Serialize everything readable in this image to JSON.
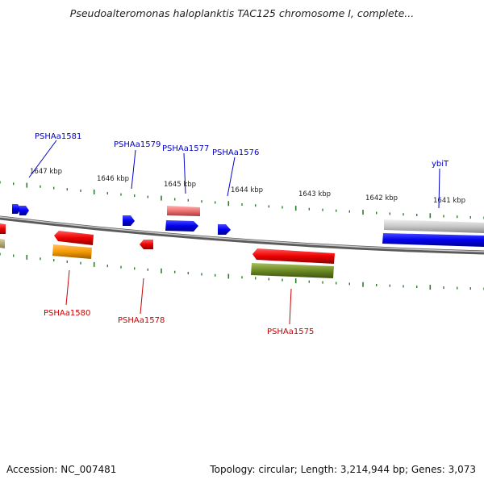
{
  "title": "Pseudoalteromonas haloplanktis TAC125 chromosome I, complete...",
  "footer": {
    "accession": "Accession: NC_007481",
    "summary": "Topology: circular; Length: 3,214,944 bp; Genes: 3,073"
  },
  "colors": {
    "forward_label": "#0000cc",
    "reverse_label": "#cc0000",
    "tick": "#2e7d2e",
    "backbone": "#888888"
  },
  "kbp_labels": [
    "1647 kbp",
    "1646 kbp",
    "1645 kbp",
    "1644 kbp",
    "1643 kbp",
    "1642 kbp",
    "1641 kbp"
  ],
  "forward_genes": [
    "PSHAa1581",
    "PSHAa1579",
    "PSHAa1577",
    "PSHAa1576",
    "ybiT"
  ],
  "reverse_genes": [
    "PSHAa1580",
    "PSHAa1578",
    "PSHAa1575"
  ]
}
